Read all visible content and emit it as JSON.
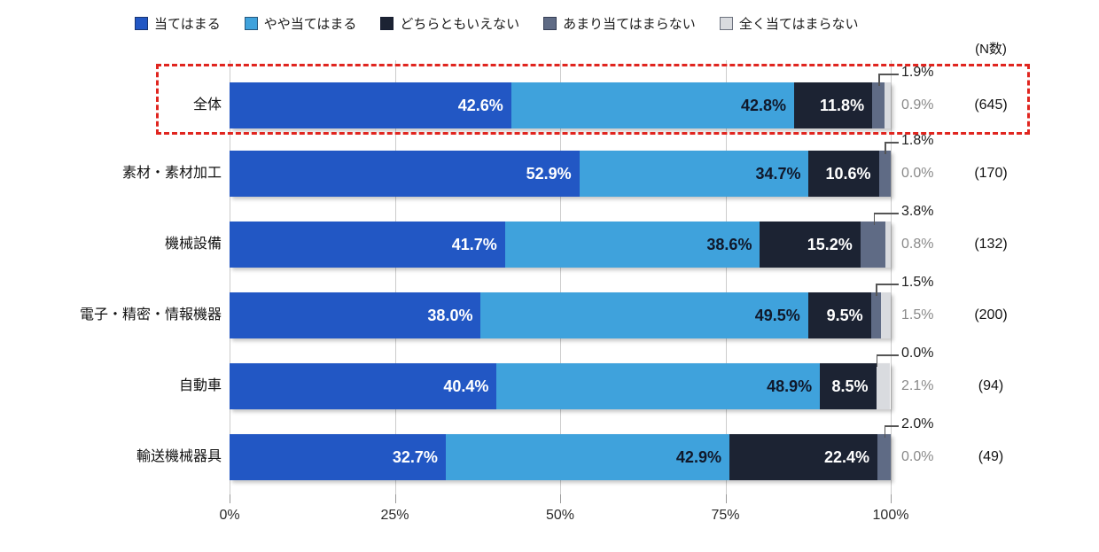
{
  "chart_data": {
    "type": "bar",
    "subtype": "horizontal-stacked-100pct",
    "title": "",
    "n_header": "(N数)",
    "categories": [
      "全体",
      "素材・素材加工",
      "機械設備",
      "電子・精密・情報機器",
      "自動車",
      "輸送機械器具"
    ],
    "n_counts": [
      645,
      170,
      132,
      200,
      94,
      49
    ],
    "series": [
      {
        "name": "当てはまる",
        "color": "#2257c4",
        "values": [
          42.6,
          52.9,
          41.7,
          38.0,
          40.4,
          32.7
        ]
      },
      {
        "name": "やや当てはまる",
        "color": "#3fa2dc",
        "values": [
          42.8,
          34.7,
          38.6,
          49.5,
          48.9,
          42.9
        ]
      },
      {
        "name": "どちらともいえない",
        "color": "#1c2333",
        "values": [
          11.8,
          10.6,
          15.2,
          9.5,
          8.5,
          22.4
        ]
      },
      {
        "name": "あまり当てはまらない",
        "color": "#5f6b85",
        "values": [
          1.9,
          1.8,
          3.8,
          1.5,
          0.0,
          2.0
        ]
      },
      {
        "name": "全く当てはまらない",
        "color": "#d9dbdf",
        "values": [
          0.9,
          0.0,
          0.8,
          1.5,
          2.1,
          0.0
        ]
      }
    ],
    "x_ticks": [
      "0%",
      "25%",
      "50%",
      "75%",
      "100%"
    ],
    "xlim": [
      0,
      100
    ],
    "grid": "vertical-on",
    "legend_position": "top",
    "highlighted_category": "全体",
    "highlight_color": "#e0251f",
    "value_label_format": "0.0%"
  }
}
